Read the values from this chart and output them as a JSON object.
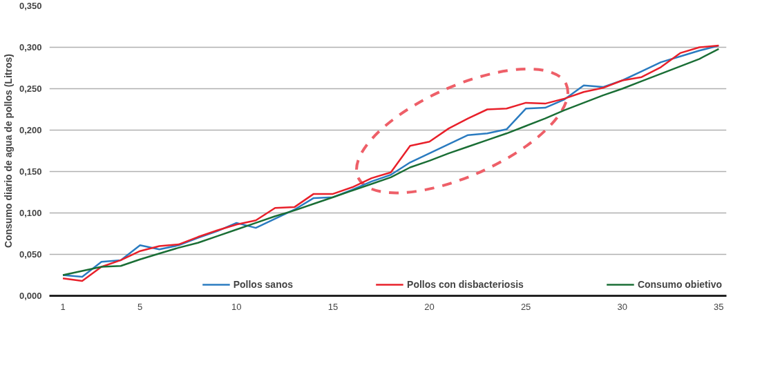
{
  "chart_data": {
    "type": "line",
    "ylabel": "Consumo diario de agua de pollos (Litros)",
    "x": [
      1,
      2,
      3,
      4,
      5,
      6,
      7,
      8,
      9,
      10,
      11,
      12,
      13,
      14,
      15,
      16,
      17,
      18,
      19,
      20,
      21,
      22,
      23,
      24,
      25,
      26,
      27,
      28,
      29,
      30,
      31,
      32,
      33,
      34,
      35
    ],
    "series": [
      {
        "name": "Pollos sanos",
        "color": "#2a7bc0",
        "values": [
          0.025,
          0.023,
          0.041,
          0.043,
          0.061,
          0.056,
          0.061,
          0.07,
          0.078,
          0.088,
          0.082,
          0.093,
          0.104,
          0.118,
          0.119,
          0.128,
          0.138,
          0.146,
          0.161,
          0.172,
          0.183,
          0.194,
          0.196,
          0.201,
          0.226,
          0.227,
          0.237,
          0.254,
          0.252,
          0.26,
          0.271,
          0.282,
          0.289,
          0.296,
          0.302
        ]
      },
      {
        "name": "Pollos con disbacteriosis",
        "color": "#e8202a",
        "values": [
          0.021,
          0.018,
          0.035,
          0.043,
          0.054,
          0.06,
          0.062,
          0.071,
          0.079,
          0.086,
          0.091,
          0.106,
          0.107,
          0.123,
          0.123,
          0.131,
          0.142,
          0.149,
          0.181,
          0.186,
          0.202,
          0.214,
          0.225,
          0.226,
          0.233,
          0.232,
          0.238,
          0.246,
          0.251,
          0.26,
          0.264,
          0.276,
          0.293,
          0.3,
          0.302
        ]
      },
      {
        "name": "Consumo obietivo",
        "color": "#1a6e35",
        "values": [
          0.025,
          0.03,
          0.035,
          0.036,
          0.044,
          0.051,
          0.058,
          0.064,
          0.072,
          0.08,
          0.088,
          0.096,
          0.103,
          0.111,
          0.119,
          0.127,
          0.135,
          0.143,
          0.155,
          0.163,
          0.172,
          0.18,
          0.188,
          0.196,
          0.205,
          0.214,
          0.224,
          0.233,
          0.242,
          0.25,
          0.259,
          0.268,
          0.277,
          0.286,
          0.298
        ]
      }
    ],
    "xlim": [
      0.3,
      35.4
    ],
    "ylim": [
      0,
      0.35
    ],
    "xticks": [
      1,
      5,
      10,
      15,
      20,
      25,
      30,
      35
    ],
    "yticks": [
      {
        "value": 0,
        "label": "0,000"
      },
      {
        "value": 0.05,
        "label": "0,050"
      },
      {
        "value": 0.1,
        "label": "0,100"
      },
      {
        "value": 0.15,
        "label": "0,150"
      },
      {
        "value": 0.2,
        "label": "0,200"
      },
      {
        "value": 0.25,
        "label": "0,250"
      },
      {
        "value": 0.3,
        "label": "0,300"
      },
      {
        "value": 0.35,
        "label": "0,350"
      }
    ],
    "grid": "y",
    "legend": "bottom right",
    "marker": "none",
    "line_style": "solid"
  }
}
